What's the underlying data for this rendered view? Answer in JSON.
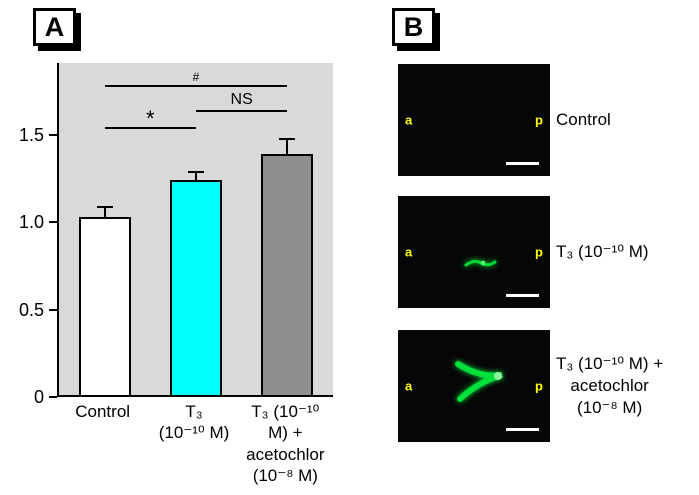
{
  "panel_a": {
    "label": "A"
  },
  "panel_b": {
    "label": "B",
    "images": [
      {
        "caption": "Control",
        "anterior_marker": "a",
        "posterior_marker": "p",
        "signal": "none"
      },
      {
        "caption": "T₃ (10⁻¹⁰ M)",
        "anterior_marker": "a",
        "posterior_marker": "p",
        "signal": "small"
      },
      {
        "caption": "T₃ (10⁻¹⁰ M) +\nacetochlor\n(10⁻⁸ M)",
        "anterior_marker": "a",
        "posterior_marker": "p",
        "signal": "large"
      }
    ]
  },
  "chart_data": {
    "type": "bar",
    "title": "",
    "xlabel": "",
    "ylabel": "",
    "categories": [
      "Control",
      "T₃ (10⁻¹⁰ M)",
      "T₃ (10⁻¹⁰ M) + acetochlor (10⁻⁸ M)"
    ],
    "x_tick_labels": [
      "Control",
      "T₃\n(10⁻¹⁰ M)",
      "T₃ (10⁻¹⁰ M) +\nacetochlor\n(10⁻⁸ M)"
    ],
    "values": [
      1.02,
      1.23,
      1.38
    ],
    "errors": [
      0.05,
      0.04,
      0.08
    ],
    "bar_colors": [
      "#ffffff",
      "#00ffff",
      "#8f8f8f"
    ],
    "ylim": [
      0,
      1.9
    ],
    "ytick_values": [
      0,
      0.5,
      1.0,
      1.5
    ],
    "ytick_labels": [
      "0",
      "0.5",
      "1.0",
      "1.5"
    ],
    "plot_background": "#d9d9d9",
    "grid": false,
    "legend": "none",
    "annotations": [
      {
        "label": "*",
        "from": 0,
        "to": 1,
        "y": 1.52
      },
      {
        "label": "NS",
        "from": 1,
        "to": 2,
        "y": 1.62
      },
      {
        "label": "#",
        "from": 0,
        "to": 2,
        "y": 1.76
      }
    ]
  },
  "colors": {
    "signal_green": "#00e43a",
    "marker_yellow": "#ffff00",
    "cyan_bar": "#00ffff",
    "gray_bar": "#8f8f8f",
    "plot_background": "#d9d9d9"
  }
}
